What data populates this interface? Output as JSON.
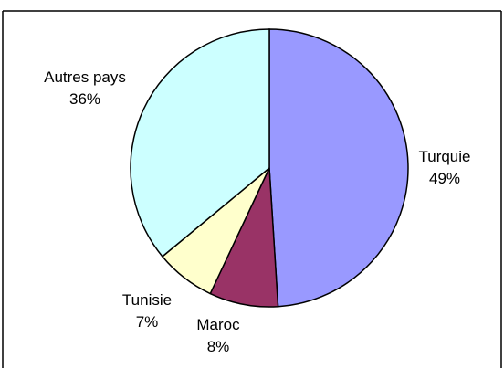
{
  "chart_data": {
    "type": "pie",
    "title": "",
    "categories": [
      "Turquie",
      "Maroc",
      "Tunisie",
      "Autres pays"
    ],
    "values": [
      49,
      8,
      7,
      36
    ],
    "value_labels": [
      "49%",
      "8%",
      "7%",
      "36%"
    ],
    "colors": [
      "#9999ff",
      "#993366",
      "#ffffcc",
      "#ccffff"
    ],
    "legend": "none",
    "slice_border": "#000000"
  }
}
